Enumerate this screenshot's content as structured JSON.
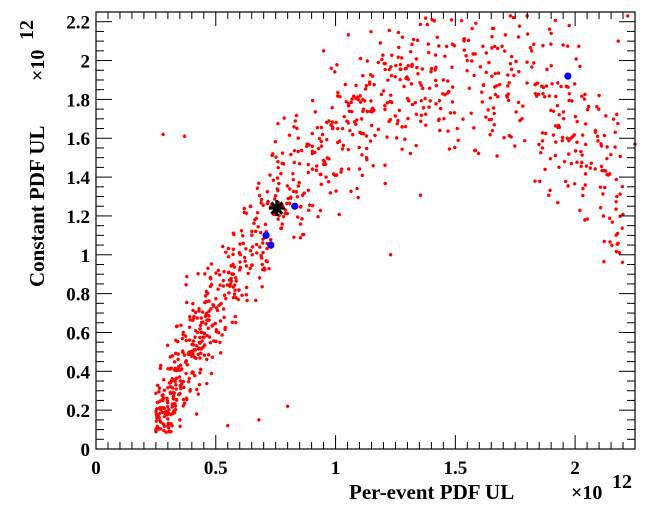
{
  "chart_data": {
    "type": "scatter",
    "xlabel": "Per-event PDF UL",
    "ylabel": "Constant PDF UL",
    "x_multiplier": "×10",
    "y_multiplier": "×10",
    "multiplier_exponent": "12",
    "xlim": [
      0,
      2.25
    ],
    "ylim": [
      0,
      2.25
    ],
    "x_ticks": [
      "0",
      "0.5",
      "1",
      "1.5",
      "2"
    ],
    "y_ticks": [
      "0",
      "0.2",
      "0.4",
      "0.6",
      "0.8",
      "1",
      "1.2",
      "1.4",
      "1.6",
      "1.8",
      "2",
      "2.2"
    ],
    "grid": false,
    "legend": "none",
    "colors": {
      "trials": "#ff0000",
      "selected": "#0000ff",
      "observed": "#000000"
    },
    "series": [
      {
        "marker": "red-star",
        "count": 1000,
        "shape": "broad band rising from (0.25, 0.1) to (2.2, 2.2); densest near (0.75, 1.2)",
        "values": [
          [
            0.28,
            1.62
          ],
          [
            0.37,
            1.61
          ],
          [
            0.27,
            0.43
          ],
          [
            0.25,
            0.1
          ],
          [
            0.3,
            0.12
          ],
          [
            0.35,
            0.15
          ],
          [
            0.42,
            0.18
          ],
          [
            0.55,
            0.12
          ],
          [
            0.8,
            0.22
          ],
          [
            0.68,
            0.15
          ],
          [
            1.23,
            1.0
          ],
          [
            1.73,
            2.23
          ],
          [
            1.8,
            2.23
          ],
          [
            1.9,
            2.14
          ],
          [
            1.95,
            2.08
          ],
          [
            2.18,
            2.1
          ],
          [
            2.25,
            1.57
          ],
          [
            2.02,
            1.97
          ],
          [
            2.1,
            1.82
          ],
          [
            2.22,
            2.23
          ],
          [
            1.55,
            2.0
          ],
          [
            1.45,
            1.9
          ],
          [
            0.95,
            2.05
          ]
        ]
      },
      {
        "name": "",
        "marker": "blue-circle",
        "values": [
          [
            0.71,
            1.1
          ],
          [
            0.73,
            1.05
          ],
          [
            0.83,
            1.25
          ],
          [
            1.97,
            1.92
          ]
        ]
      },
      {
        "name": "",
        "marker": "black-star",
        "values": [
          [
            0.755,
            1.24
          ]
        ]
      }
    ]
  }
}
